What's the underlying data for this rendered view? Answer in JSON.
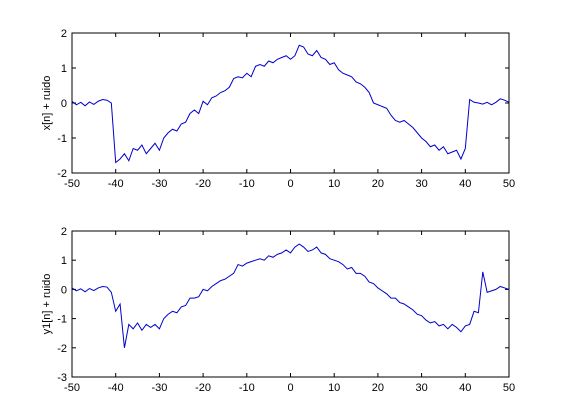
{
  "chart_data": [
    {
      "type": "line",
      "ylabel": "x[n] + ruido",
      "xlim": [
        -50,
        50
      ],
      "ylim": [
        -2,
        2
      ],
      "xticks": [
        -50,
        -40,
        -30,
        -20,
        -10,
        0,
        10,
        20,
        30,
        40,
        50
      ],
      "yticks": [
        -2,
        -1,
        0,
        1,
        2
      ],
      "grid": false,
      "color": "#0000cc",
      "x": [
        -50,
        -49,
        -48,
        -47,
        -46,
        -45,
        -44,
        -43,
        -42,
        -41,
        -40,
        -39,
        -38,
        -37,
        -36,
        -35,
        -34,
        -33,
        -32,
        -31,
        -30,
        -29,
        -28,
        -27,
        -26,
        -25,
        -24,
        -23,
        -22,
        -21,
        -20,
        -19,
        -18,
        -17,
        -16,
        -15,
        -14,
        -13,
        -12,
        -11,
        -10,
        -9,
        -8,
        -7,
        -6,
        -5,
        -4,
        -3,
        -2,
        -1,
        0,
        1,
        2,
        3,
        4,
        5,
        6,
        7,
        8,
        9,
        10,
        11,
        12,
        13,
        14,
        15,
        16,
        17,
        18,
        19,
        20,
        21,
        22,
        23,
        24,
        25,
        26,
        27,
        28,
        29,
        30,
        31,
        32,
        33,
        34,
        35,
        36,
        37,
        38,
        39,
        40,
        41,
        42,
        43,
        44,
        45,
        46,
        47,
        48,
        49,
        50
      ],
      "y": [
        0.05,
        -0.05,
        0.02,
        -0.08,
        0.03,
        -0.04,
        0.05,
        0.1,
        0.08,
        0.0,
        -1.7,
        -1.6,
        -1.45,
        -1.65,
        -1.3,
        -1.35,
        -1.2,
        -1.45,
        -1.3,
        -1.15,
        -1.35,
        -1.0,
        -0.85,
        -0.75,
        -0.8,
        -0.6,
        -0.55,
        -0.3,
        -0.2,
        -0.3,
        0.05,
        -0.05,
        0.15,
        0.2,
        0.3,
        0.35,
        0.45,
        0.7,
        0.75,
        0.72,
        0.85,
        0.75,
        1.05,
        1.1,
        1.05,
        1.2,
        1.15,
        1.25,
        1.3,
        1.35,
        1.25,
        1.35,
        1.65,
        1.6,
        1.4,
        1.35,
        1.5,
        1.3,
        1.25,
        1.1,
        1.15,
        0.95,
        0.85,
        0.8,
        0.75,
        0.6,
        0.55,
        0.45,
        0.3,
        0.0,
        -0.05,
        -0.1,
        -0.15,
        -0.35,
        -0.5,
        -0.55,
        -0.5,
        -0.6,
        -0.7,
        -0.85,
        -1.0,
        -1.1,
        -1.25,
        -1.2,
        -1.35,
        -1.25,
        -1.45,
        -1.4,
        -1.35,
        -1.6,
        -1.3,
        0.1,
        0.02,
        0.0,
        -0.03,
        0.02,
        -0.05,
        0.02,
        0.12,
        0.08,
        0.02
      ]
    },
    {
      "type": "line",
      "ylabel": "y1[n] + ruido",
      "xlim": [
        -50,
        50
      ],
      "ylim": [
        -3,
        2
      ],
      "xticks": [
        -50,
        -40,
        -30,
        -20,
        -10,
        0,
        10,
        20,
        30,
        40,
        50
      ],
      "yticks": [
        -3,
        -2,
        -1,
        0,
        1,
        2
      ],
      "grid": false,
      "color": "#0000cc",
      "x": [
        -50,
        -49,
        -48,
        -47,
        -46,
        -45,
        -44,
        -43,
        -42,
        -41,
        -40,
        -39,
        -38,
        -37,
        -36,
        -35,
        -34,
        -33,
        -32,
        -31,
        -30,
        -29,
        -28,
        -27,
        -26,
        -25,
        -24,
        -23,
        -22,
        -21,
        -20,
        -19,
        -18,
        -17,
        -16,
        -15,
        -14,
        -13,
        -12,
        -11,
        -10,
        -9,
        -8,
        -7,
        -6,
        -5,
        -4,
        -3,
        -2,
        -1,
        0,
        1,
        2,
        3,
        4,
        5,
        6,
        7,
        8,
        9,
        10,
        11,
        12,
        13,
        14,
        15,
        16,
        17,
        18,
        19,
        20,
        21,
        22,
        23,
        24,
        25,
        26,
        27,
        28,
        29,
        30,
        31,
        32,
        33,
        34,
        35,
        36,
        37,
        38,
        39,
        40,
        41,
        42,
        43,
        44,
        45,
        46,
        47,
        48,
        49,
        50
      ],
      "y": [
        0.05,
        -0.05,
        0.02,
        -0.08,
        0.03,
        -0.04,
        0.05,
        0.1,
        0.08,
        -0.1,
        -0.75,
        -0.5,
        -2.0,
        -1.2,
        -1.35,
        -1.15,
        -1.4,
        -1.2,
        -1.3,
        -1.2,
        -1.35,
        -1.0,
        -0.85,
        -0.75,
        -0.8,
        -0.6,
        -0.55,
        -0.3,
        -0.3,
        -0.25,
        0.0,
        -0.05,
        0.1,
        0.2,
        0.3,
        0.35,
        0.45,
        0.55,
        0.85,
        0.8,
        0.9,
        0.95,
        1.0,
        1.05,
        1.0,
        1.15,
        1.1,
        1.2,
        1.25,
        1.35,
        1.25,
        1.45,
        1.55,
        1.45,
        1.3,
        1.35,
        1.45,
        1.25,
        1.2,
        1.05,
        1.0,
        0.95,
        0.85,
        0.7,
        0.75,
        0.55,
        0.55,
        0.45,
        0.25,
        0.2,
        0.05,
        -0.05,
        -0.15,
        -0.3,
        -0.3,
        -0.45,
        -0.5,
        -0.6,
        -0.7,
        -0.85,
        -0.9,
        -1.05,
        -1.15,
        -1.1,
        -1.25,
        -1.2,
        -1.35,
        -1.2,
        -1.3,
        -1.45,
        -1.25,
        -1.2,
        -0.75,
        -0.8,
        0.6,
        -0.1,
        -0.05,
        0.0,
        0.1,
        0.05,
        0.0
      ]
    }
  ]
}
